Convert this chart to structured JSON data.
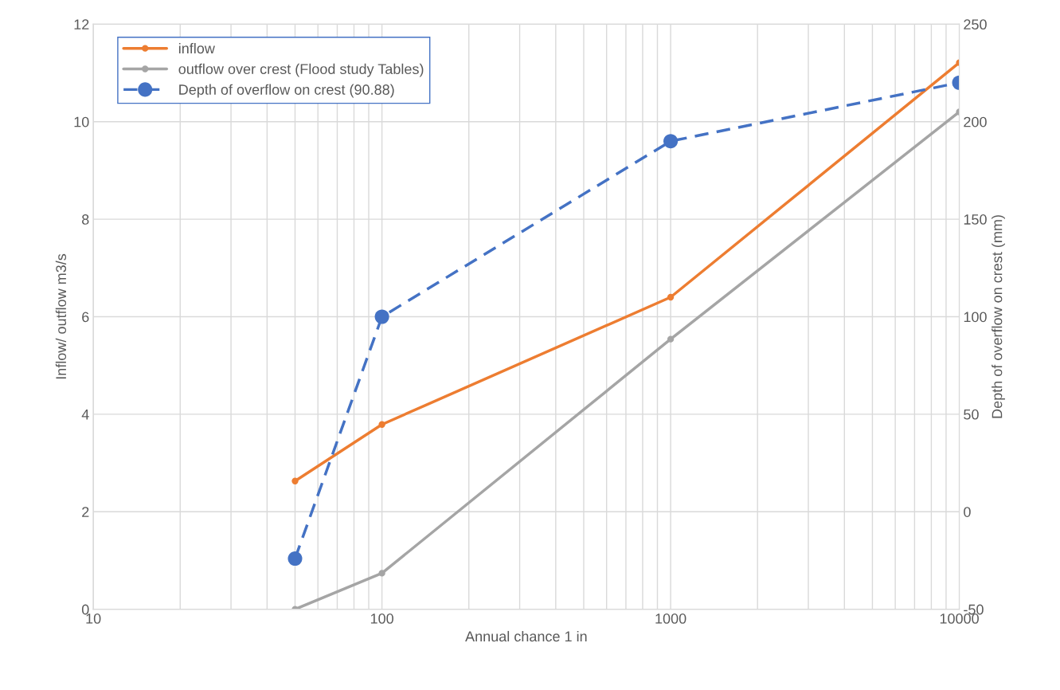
{
  "chart_data": {
    "type": "line",
    "xlabel": "Annual chance 1 in",
    "ylabel": "Inflow/ outflow m3/s",
    "y2label": "Depth of overflow on crest (mm)",
    "x": [
      50,
      100,
      1000,
      10000
    ],
    "series": [
      {
        "name": "inflow",
        "color": "#ed7d31",
        "values": [
          2.63,
          3.79,
          6.4,
          11.21
        ],
        "marker": "circle",
        "line_style": "solid"
      },
      {
        "name": "outflow over crest (Flood study Tables)",
        "color": "#a5a5a5",
        "values": [
          0,
          0.74,
          5.54,
          10.2
        ],
        "marker": "circle",
        "line_style": "solid"
      },
      {
        "name": "Depth of overflow on crest (90.88)",
        "color": "#4472c4",
        "values": [
          -24,
          100,
          190,
          220
        ],
        "axis": "y2",
        "marker": "circle",
        "line_style": "dashed"
      }
    ],
    "log": "x",
    "xlim": [
      10,
      10000
    ],
    "xticks": [
      10,
      100,
      1000,
      10000
    ],
    "ylim": [
      0,
      12
    ],
    "yticks": [
      0,
      2,
      4,
      6,
      8,
      10,
      12
    ],
    "y2lim": [
      -50,
      250
    ],
    "y2ticks": [
      -50,
      0,
      50,
      100,
      150,
      200,
      250
    ],
    "grid": true,
    "legend": "top left"
  }
}
